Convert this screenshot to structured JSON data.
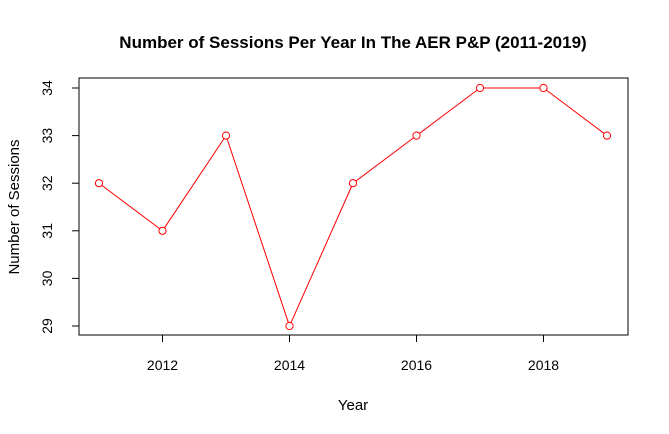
{
  "chart_data": {
    "type": "line",
    "title": "Number of Sessions Per Year In The AER P&P (2011-2019)",
    "xlabel": "Year",
    "ylabel": "Number of Sessions",
    "x": [
      2011,
      2012,
      2013,
      2014,
      2015,
      2016,
      2017,
      2018,
      2019
    ],
    "series": [
      {
        "values": [
          32,
          31,
          33,
          29,
          32,
          33,
          34,
          34,
          33
        ]
      }
    ],
    "xlim": [
      2011,
      2019
    ],
    "ylim": [
      29,
      34
    ],
    "x_ticks": [
      2012,
      2014,
      2016,
      2018
    ],
    "y_ticks": [
      29,
      30,
      31,
      32,
      33,
      34
    ],
    "x_tick_labels": [
      "2012",
      "2014",
      "2016",
      "2018"
    ],
    "y_tick_labels": [
      "29",
      "30",
      "31",
      "32",
      "33",
      "34"
    ],
    "grid": false,
    "markers": "open-circle",
    "colors": {
      "series": "#ff0000",
      "axis": "#000000",
      "background": "#ffffff"
    }
  }
}
